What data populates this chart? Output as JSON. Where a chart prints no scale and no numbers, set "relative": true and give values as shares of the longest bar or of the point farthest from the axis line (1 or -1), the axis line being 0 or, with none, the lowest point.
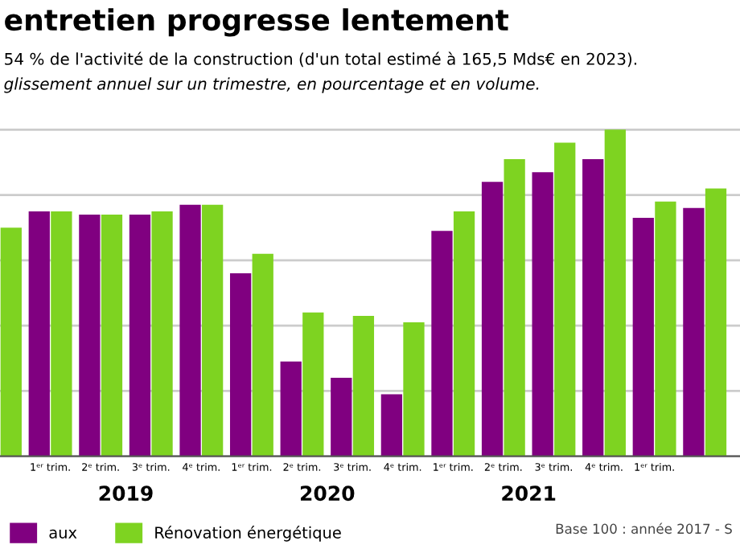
{
  "chart_data": {
    "type": "bar",
    "title": "entretien progresse lentement",
    "subtitle": "54 % de l'activité de la construction (d'un total estimé à 165,5 Mds€ en 2023).\nglissement annuel sur un trimestre, en pourcentage et en volume.",
    "categories": [
      null,
      "1ᵉʳ trim.",
      "2ᵉ trim.",
      "3ᵉ trim.",
      "4ᵉ trim.",
      "1ᵉʳ trim.",
      "2ᵉ trim.",
      "3ᵉ trim.",
      "4ᵉ trim.",
      "1ᵉʳ trim.",
      "2ᵉ trim.",
      "3ᵉ trim.",
      "4ᵉ trim.",
      "1ᵉʳ trim.",
      null
    ],
    "relative": true,
    "series": [
      {
        "name": "aux",
        "color": "#800080",
        "values": [
          null,
          0.75,
          0.74,
          0.74,
          0.77,
          0.56,
          0.29,
          0.24,
          0.19,
          0.69,
          0.84,
          0.87,
          0.91,
          0.73,
          0.76
        ]
      },
      {
        "name": "Rénovation énergétique",
        "color": "#7ed321",
        "values": [
          0.7,
          0.75,
          0.74,
          0.75,
          0.77,
          0.62,
          0.44,
          0.43,
          0.41,
          0.75,
          0.91,
          0.96,
          1,
          0.78,
          0.82
        ]
      }
    ],
    "annotations": [
      "2019",
      "2020",
      "2021",
      "Base 100 : année 2017 - S"
    ],
    "grid": "y",
    "legend": "bottom"
  }
}
